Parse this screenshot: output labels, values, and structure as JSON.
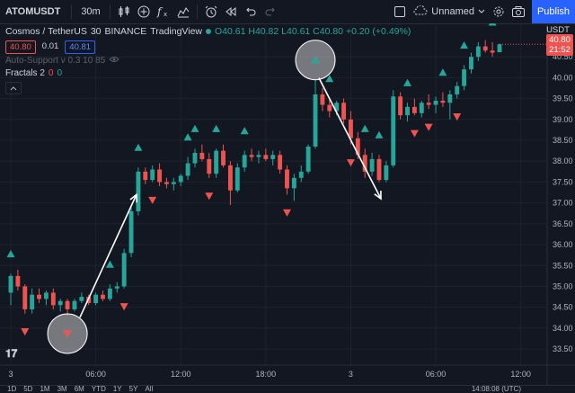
{
  "toolbar": {
    "symbol": "ATOMUSDT",
    "interval": "30m",
    "layout_name": "Unnamed",
    "publish_label": "Publish",
    "icons": [
      "candles-icon",
      "add-icon",
      "fx-icon",
      "templates-icon",
      "alert-icon",
      "replay-icon",
      "undo-icon",
      "redo-icon",
      "fullscreen-icon",
      "cloud-icon",
      "settings-icon",
      "camera-icon"
    ]
  },
  "legend": {
    "pair": "Cosmos / TetherUS",
    "interval": "30",
    "exchange": "BINANCE",
    "source": "TradingView",
    "ohlc": "O40.61  H40.82  L40.61  C40.80  +0.20 (+0.49%)"
  },
  "tags": {
    "bid": "40.80",
    "spread": "0.01",
    "ask": "40.81"
  },
  "indicators": {
    "auto_support": "Auto-Support  v 0.3 10 85",
    "fractals_label": "Fractals 2",
    "fractals_v1": "0",
    "fractals_v2": "0"
  },
  "price_axis": {
    "pair": "USDT",
    "last_price": "40.80",
    "countdown": "21:52"
  },
  "bottom": {
    "ranges": [
      "1D",
      "5D",
      "1M",
      "3M",
      "6M",
      "YTD",
      "1Y",
      "5Y",
      "All"
    ],
    "time": "14:08:08 (UTC)"
  },
  "colors": {
    "up": "#26a69a",
    "down": "#ef5350",
    "accent": "#2962ff",
    "background": "#131722"
  },
  "chart_data": {
    "type": "candlestick",
    "ylim": [
      33.2,
      41.0
    ],
    "yticks": [
      33.5,
      34.0,
      34.5,
      35.0,
      35.5,
      36.0,
      36.5,
      37.0,
      37.5,
      38.0,
      38.5,
      39.0,
      39.5,
      40.0,
      40.5
    ],
    "xtick_labels": [
      {
        "label": "3",
        "index": 0
      },
      {
        "label": "06:00",
        "index": 12
      },
      {
        "label": "12:00",
        "index": 24
      },
      {
        "label": "18:00",
        "index": 36
      },
      {
        "label": "3",
        "index": 48
      },
      {
        "label": "06:00",
        "index": 60
      },
      {
        "label": "12:00",
        "index": 72
      }
    ],
    "candles": [
      [
        34.85,
        35.3,
        34.55,
        35.25
      ],
      [
        35.25,
        35.4,
        34.9,
        35.0
      ],
      [
        35.0,
        35.05,
        34.35,
        34.45
      ],
      [
        34.45,
        34.95,
        34.35,
        34.8
      ],
      [
        34.8,
        34.95,
        34.6,
        34.7
      ],
      [
        34.7,
        34.9,
        34.55,
        34.85
      ],
      [
        34.85,
        34.95,
        34.45,
        34.55
      ],
      [
        34.55,
        34.7,
        34.4,
        34.65
      ],
      [
        34.65,
        34.7,
        34.3,
        34.45
      ],
      [
        34.45,
        34.7,
        34.4,
        34.65
      ],
      [
        34.65,
        34.85,
        34.6,
        34.75
      ],
      [
        34.75,
        34.8,
        34.55,
        34.6
      ],
      [
        34.6,
        34.85,
        34.55,
        34.8
      ],
      [
        34.8,
        34.9,
        34.65,
        34.7
      ],
      [
        34.7,
        35.05,
        34.65,
        34.95
      ],
      [
        34.95,
        35.1,
        34.85,
        35.0
      ],
      [
        35.0,
        35.9,
        34.95,
        35.8
      ],
      [
        35.8,
        36.9,
        35.7,
        36.8
      ],
      [
        36.8,
        37.85,
        36.7,
        37.75
      ],
      [
        37.75,
        37.85,
        37.45,
        37.55
      ],
      [
        37.55,
        37.9,
        37.5,
        37.8
      ],
      [
        37.8,
        37.95,
        37.4,
        37.5
      ],
      [
        37.5,
        37.6,
        37.35,
        37.45
      ],
      [
        37.45,
        37.6,
        37.3,
        37.5
      ],
      [
        37.5,
        37.7,
        37.4,
        37.65
      ],
      [
        37.65,
        38.1,
        37.55,
        37.95
      ],
      [
        37.95,
        38.3,
        37.85,
        38.2
      ],
      [
        38.2,
        38.4,
        38.0,
        38.05
      ],
      [
        38.05,
        38.2,
        37.6,
        37.7
      ],
      [
        37.7,
        38.3,
        37.6,
        38.25
      ],
      [
        38.25,
        38.4,
        37.85,
        37.9
      ],
      [
        37.9,
        38.0,
        36.95,
        37.3
      ],
      [
        37.3,
        37.95,
        37.25,
        37.85
      ],
      [
        37.85,
        38.25,
        37.75,
        38.15
      ],
      [
        38.15,
        38.3,
        38.0,
        38.1
      ],
      [
        38.1,
        38.25,
        37.95,
        38.15
      ],
      [
        38.15,
        38.3,
        38.0,
        38.05
      ],
      [
        38.05,
        38.25,
        37.9,
        38.15
      ],
      [
        38.15,
        38.25,
        37.7,
        37.8
      ],
      [
        37.8,
        37.9,
        37.2,
        37.35
      ],
      [
        37.35,
        37.7,
        37.05,
        37.6
      ],
      [
        37.6,
        37.9,
        37.5,
        37.75
      ],
      [
        37.75,
        38.4,
        37.7,
        38.35
      ],
      [
        38.35,
        39.95,
        38.3,
        39.6
      ],
      [
        39.6,
        39.75,
        39.2,
        39.35
      ],
      [
        39.35,
        39.5,
        39.05,
        39.2
      ],
      [
        39.2,
        39.45,
        39.1,
        39.4
      ],
      [
        39.4,
        39.5,
        38.9,
        39.0
      ],
      [
        39.0,
        39.2,
        38.4,
        38.55
      ],
      [
        38.55,
        38.7,
        38.05,
        38.15
      ],
      [
        38.15,
        38.3,
        37.6,
        37.75
      ],
      [
        37.75,
        38.2,
        37.65,
        38.05
      ],
      [
        38.05,
        38.15,
        37.5,
        37.55
      ],
      [
        37.55,
        38.0,
        37.5,
        37.9
      ],
      [
        37.9,
        39.7,
        37.85,
        39.55
      ],
      [
        39.55,
        39.65,
        39.0,
        39.1
      ],
      [
        39.1,
        39.4,
        38.95,
        39.3
      ],
      [
        39.3,
        39.5,
        39.1,
        39.15
      ],
      [
        39.15,
        39.45,
        39.05,
        39.4
      ],
      [
        39.4,
        39.6,
        39.25,
        39.35
      ],
      [
        39.35,
        39.55,
        39.15,
        39.45
      ],
      [
        39.45,
        39.65,
        39.3,
        39.4
      ],
      [
        39.4,
        39.7,
        39.0,
        39.6
      ],
      [
        39.6,
        39.9,
        39.5,
        39.8
      ],
      [
        39.8,
        40.3,
        39.7,
        40.2
      ],
      [
        40.2,
        40.6,
        40.1,
        40.5
      ],
      [
        40.5,
        40.85,
        40.4,
        40.75
      ],
      [
        40.75,
        40.9,
        40.6,
        40.65
      ],
      [
        40.65,
        40.85,
        40.5,
        40.6
      ],
      [
        40.61,
        40.82,
        40.61,
        40.8
      ]
    ],
    "fractals_up": [
      0,
      14,
      18,
      25,
      26,
      29,
      33,
      43,
      45,
      50,
      52,
      56,
      61,
      64,
      68
    ],
    "fractals_down": [
      2,
      8,
      16,
      20,
      28,
      39,
      48,
      57,
      59,
      63
    ]
  }
}
